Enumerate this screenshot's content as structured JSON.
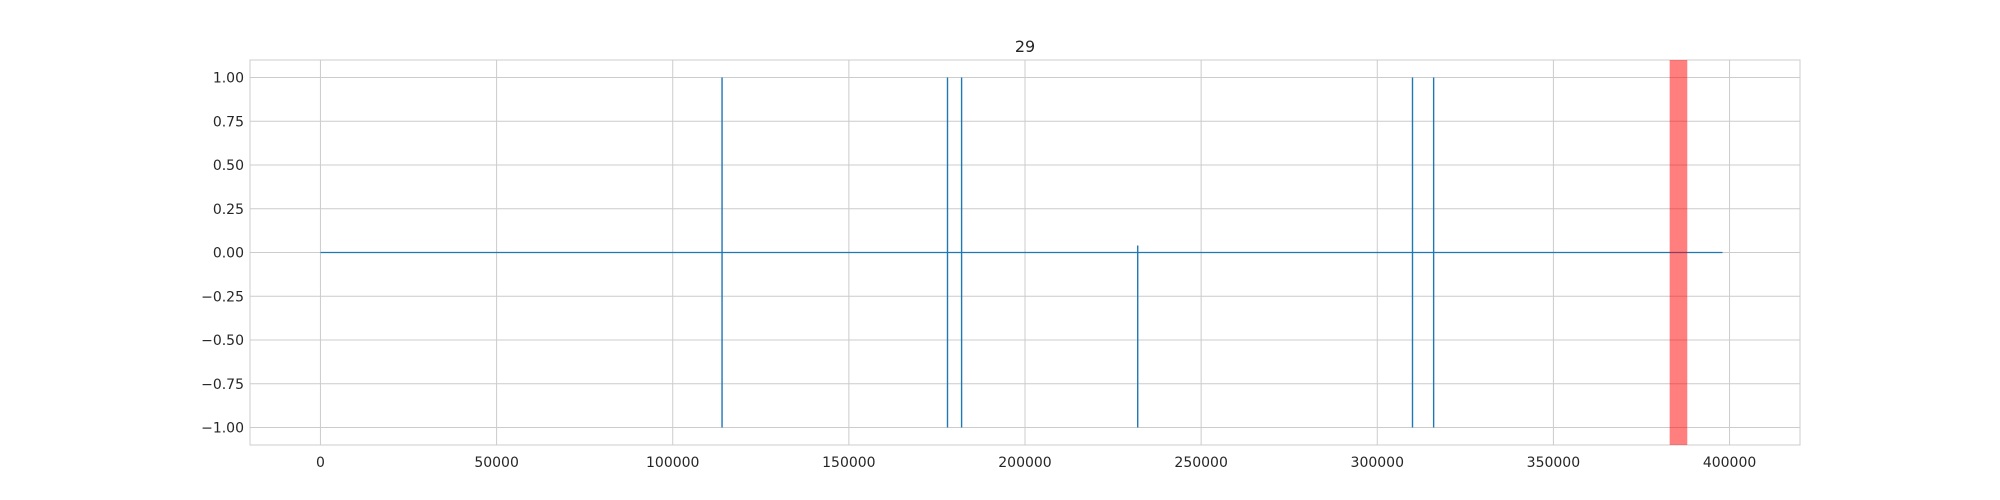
{
  "chart_data": {
    "type": "line",
    "title": "29",
    "xlabel": "",
    "ylabel": "",
    "xlim": [
      -20000,
      420000
    ],
    "ylim": [
      -1.1,
      1.1
    ],
    "grid": true,
    "x_ticks": [
      0,
      50000,
      100000,
      150000,
      200000,
      250000,
      300000,
      350000,
      400000
    ],
    "y_ticks": [
      1.0,
      0.75,
      0.5,
      0.25,
      0.0,
      -0.25,
      -0.5,
      -0.75,
      -1.0
    ],
    "x_tick_labels": [
      "0",
      "50000",
      "100000",
      "150000",
      "200000",
      "250000",
      "300000",
      "350000",
      "400000"
    ],
    "y_tick_labels": [
      "1.00",
      "0.75",
      "0.50",
      "0.25",
      "0.00",
      "−0.25",
      "−0.50",
      "−0.75",
      "−1.00"
    ],
    "series": [
      {
        "color": "#1f77b4",
        "baseline": {
          "x_start": 0,
          "x_end": 398000,
          "y": 0
        },
        "spikes": [
          {
            "x": 114000,
            "y_min": -1.0,
            "y_max": 1.0
          },
          {
            "x": 178000,
            "y_min": -1.0,
            "y_max": 1.0
          },
          {
            "x": 182000,
            "y_min": -1.0,
            "y_max": 1.0
          },
          {
            "x": 232000,
            "y_min": -1.0,
            "y_max": 0.04
          },
          {
            "x": 310000,
            "y_min": -1.0,
            "y_max": 1.0
          },
          {
            "x": 316000,
            "y_min": -1.0,
            "y_max": 1.0
          }
        ]
      }
    ],
    "highlight": {
      "x_start": 383000,
      "x_end": 388000,
      "color": "#ff0000",
      "opacity": 0.5
    }
  }
}
